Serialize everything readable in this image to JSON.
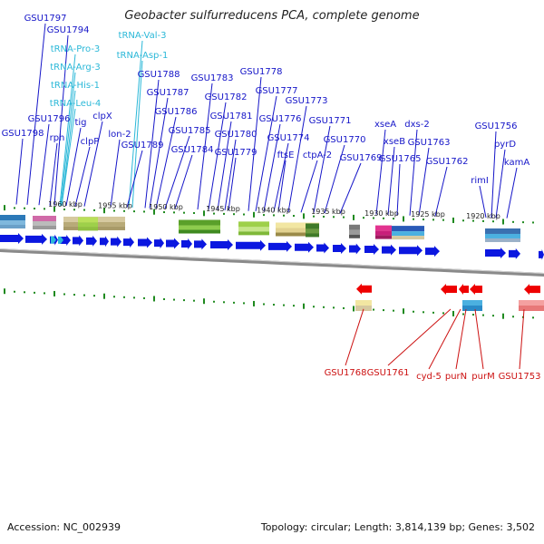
{
  "title": "Geobacter sulfurreducens PCA, complete genome",
  "accession": "Accession: NC_002939",
  "topology": "Topology: circular; Length: 3,814,139 bp; Genes: 3,502",
  "colors": {
    "label_blue": "#1515c8",
    "label_cyan": "#2bb8d8",
    "label_red": "#cc1111",
    "forward_gene": "#0b17e0",
    "reverse_gene": "#ee0000",
    "tick_green": "#1f8a1f",
    "backbone": "#8a8a8a"
  },
  "scale_ticks": [
    "1960 kbp",
    "1955 kbp",
    "1950 kbp",
    "1945 kbp",
    "1940 kbp",
    "1935 kbp",
    "1930 kbp",
    "1925 kbp",
    "1920 kbp"
  ],
  "top_labels": [
    {
      "text": "GSU1797",
      "color": "blue"
    },
    {
      "text": "GSU1794",
      "color": "blue"
    },
    {
      "text": "tRNA-Pro-3",
      "color": "cyan"
    },
    {
      "text": "tRNA-Arg-3",
      "color": "cyan"
    },
    {
      "text": "tRNA-His-1",
      "color": "cyan"
    },
    {
      "text": "tRNA-Leu-4",
      "color": "cyan"
    },
    {
      "text": "GSU1796",
      "color": "blue"
    },
    {
      "text": "GSU1798",
      "color": "blue"
    },
    {
      "text": "rph",
      "color": "blue"
    },
    {
      "text": "tig",
      "color": "blue"
    },
    {
      "text": "clpP",
      "color": "blue"
    },
    {
      "text": "clpX",
      "color": "blue"
    },
    {
      "text": "lon-2",
      "color": "blue"
    },
    {
      "text": "tRNA-Val-3",
      "color": "cyan"
    },
    {
      "text": "tRNA-Asp-1",
      "color": "cyan"
    },
    {
      "text": "GSU1788",
      "color": "blue"
    },
    {
      "text": "GSU1787",
      "color": "blue"
    },
    {
      "text": "GSU1786",
      "color": "blue"
    },
    {
      "text": "GSU1785",
      "color": "blue"
    },
    {
      "text": "GSU1789",
      "color": "blue"
    },
    {
      "text": "GSU1784",
      "color": "blue"
    },
    {
      "text": "GSU1783",
      "color": "blue"
    },
    {
      "text": "GSU1782",
      "color": "blue"
    },
    {
      "text": "GSU1781",
      "color": "blue"
    },
    {
      "text": "GSU1780",
      "color": "blue"
    },
    {
      "text": "GSU1779",
      "color": "blue"
    },
    {
      "text": "GSU1778",
      "color": "blue"
    },
    {
      "text": "GSU1777",
      "color": "blue"
    },
    {
      "text": "GSU1776",
      "color": "blue"
    },
    {
      "text": "GSU1774",
      "color": "blue"
    },
    {
      "text": "ftsE",
      "color": "blue"
    },
    {
      "text": "GSU1773",
      "color": "blue"
    },
    {
      "text": "ctpA-2",
      "color": "blue"
    },
    {
      "text": "GSU1771",
      "color": "blue"
    },
    {
      "text": "GSU1770",
      "color": "blue"
    },
    {
      "text": "GSU1769",
      "color": "blue"
    },
    {
      "text": "xseA",
      "color": "blue"
    },
    {
      "text": "xseB",
      "color": "blue"
    },
    {
      "text": "GSU1765",
      "color": "blue"
    },
    {
      "text": "dxs-2",
      "color": "blue"
    },
    {
      "text": "GSU1763",
      "color": "blue"
    },
    {
      "text": "GSU1762",
      "color": "blue"
    },
    {
      "text": "GSU1756",
      "color": "blue"
    },
    {
      "text": "pyrD",
      "color": "blue"
    },
    {
      "text": "kamA",
      "color": "blue"
    },
    {
      "text": "rimI",
      "color": "blue"
    }
  ],
  "bottom_labels": [
    "GSU1768",
    "GSU1761",
    "cyd-5",
    "purN",
    "purM",
    "GSU1753"
  ]
}
